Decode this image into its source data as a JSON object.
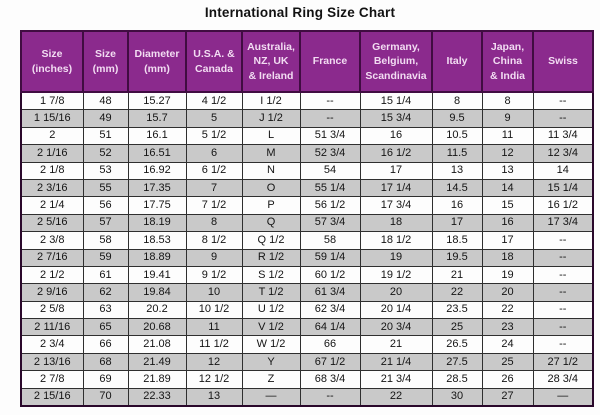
{
  "title": "International Ring Size Chart",
  "colors": {
    "header_bg": "#8B2A8D",
    "header_text": "#F2DCF2",
    "stripe_gray": "#C9C9C9",
    "row_white": "#FDFDFD",
    "border_dark": "#2F2F2F",
    "outer_border": "#2A082B"
  },
  "chart_data": {
    "type": "table",
    "title": "International Ring Size Chart",
    "columns": [
      "Size\n(inches)",
      "Size\n(mm)",
      "Diameter\n(mm)",
      "U.S.A. &\nCanada",
      "Australia,\nNZ, UK\n& Ireland",
      "France",
      "Germany,\nBelgium,\nScandinavia",
      "Italy",
      "Japan,\nChina\n& India",
      "Swiss"
    ],
    "rows": [
      [
        "1 7/8",
        "48",
        "15.27",
        "4 1/2",
        "I 1/2",
        "--",
        "15 1/4",
        "8",
        "8",
        "--"
      ],
      [
        "1 15/16",
        "49",
        "15.7",
        "5",
        "J 1/2",
        "--",
        "15 3/4",
        "9.5",
        "9",
        "--"
      ],
      [
        "2",
        "51",
        "16.1",
        "5 1/2",
        "L",
        "51 3/4",
        "16",
        "10.5",
        "11",
        "11 3/4"
      ],
      [
        "2 1/16",
        "52",
        "16.51",
        "6",
        "M",
        "52 3/4",
        "16 1/2",
        "11.5",
        "12",
        "12 3/4"
      ],
      [
        "2 1/8",
        "53",
        "16.92",
        "6 1/2",
        "N",
        "54",
        "17",
        "13",
        "13",
        "14"
      ],
      [
        "2 3/16",
        "55",
        "17.35",
        "7",
        "O",
        "55 1/4",
        "17 1/4",
        "14.5",
        "14",
        "15 1/4"
      ],
      [
        "2 1/4",
        "56",
        "17.75",
        "7 1/2",
        "P",
        "56 1/2",
        "17 3/4",
        "16",
        "15",
        "16 1/2"
      ],
      [
        "2 5/16",
        "57",
        "18.19",
        "8",
        "Q",
        "57 3/4",
        "18",
        "17",
        "16",
        "17 3/4"
      ],
      [
        "2 3/8",
        "58",
        "18.53",
        "8 1/2",
        "Q 1/2",
        "58",
        "18 1/2",
        "18.5",
        "17",
        "--"
      ],
      [
        "2 7/16",
        "59",
        "18.89",
        "9",
        "R 1/2",
        "59 1/4",
        "19",
        "19.5",
        "18",
        "--"
      ],
      [
        "2 1/2",
        "61",
        "19.41",
        "9 1/2",
        "S 1/2",
        "60 1/2",
        "19 1/2",
        "21",
        "19",
        "--"
      ],
      [
        "2 9/16",
        "62",
        "19.84",
        "10",
        "T 1/2",
        "61 3/4",
        "20",
        "22",
        "20",
        "--"
      ],
      [
        "2 5/8",
        "63",
        "20.2",
        "10 1/2",
        "U 1/2",
        "62 3/4",
        "20 1/4",
        "23.5",
        "22",
        "--"
      ],
      [
        "2 11/16",
        "65",
        "20.68",
        "11",
        "V 1/2",
        "64 1/4",
        "20 3/4",
        "25",
        "23",
        "--"
      ],
      [
        "2 3/4",
        "66",
        "21.08",
        "11 1/2",
        "W 1/2",
        "66",
        "21",
        "26.5",
        "24",
        "--"
      ],
      [
        "2 13/16",
        "68",
        "21.49",
        "12",
        "Y",
        "67 1/2",
        "21 1/4",
        "27.5",
        "25",
        "27 1/2"
      ],
      [
        "2 7/8",
        "69",
        "21.89",
        "12 1/2",
        "Z",
        "68 3/4",
        "21 3/4",
        "28.5",
        "26",
        "28 3/4"
      ],
      [
        "2 15/16",
        "70",
        "22.33",
        "13",
        "—",
        "--",
        "22",
        "30",
        "27",
        "—"
      ]
    ]
  }
}
